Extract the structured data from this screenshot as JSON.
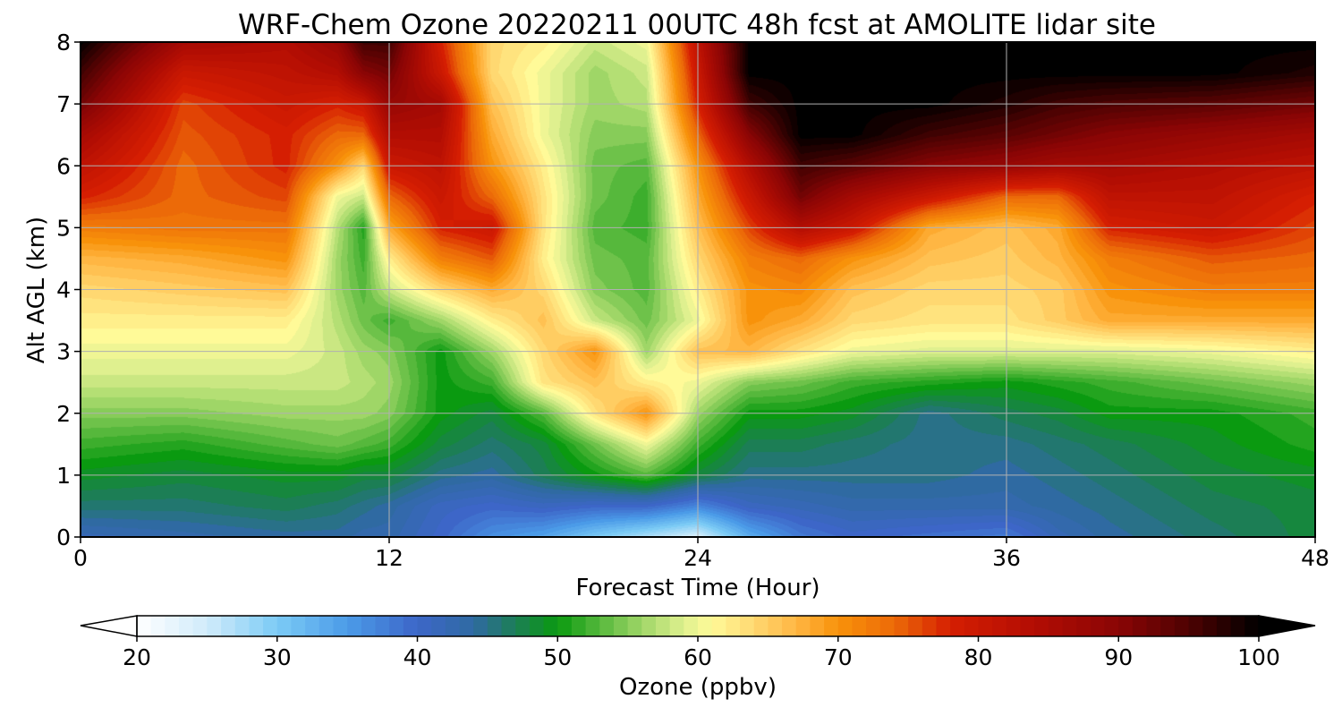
{
  "chart_data": {
    "type": "heatmap",
    "title": "WRF-Chem Ozone  20220211 00UTC 48h fcst at AMOLITE lidar site",
    "xlabel": "Forecast Time (Hour)",
    "ylabel": "Alt AGL (km)",
    "xlim": [
      0,
      48
    ],
    "ylim": [
      0,
      8
    ],
    "xticks": [
      "0",
      "12",
      "24",
      "36",
      "48"
    ],
    "yticks": [
      "0",
      "1",
      "2",
      "3",
      "4",
      "5",
      "6",
      "7",
      "8"
    ],
    "grid": true,
    "x_hours": [
      0,
      4,
      8,
      10,
      11,
      12,
      14,
      16,
      18,
      20,
      22,
      24,
      26,
      28,
      30,
      33,
      36,
      38,
      40,
      44,
      48
    ],
    "y_km": [
      0,
      0.5,
      1,
      1.5,
      2,
      2.5,
      3,
      3.5,
      4,
      4.5,
      5,
      5.5,
      6,
      6.5,
      7,
      7.5,
      8
    ],
    "ozone_ppbv": [
      [
        42,
        43,
        44,
        44,
        43,
        43,
        40,
        36,
        34,
        30,
        27,
        24,
        33,
        38,
        40,
        39,
        38,
        42,
        44,
        46,
        48
      ],
      [
        46,
        46,
        47,
        46,
        45,
        44,
        41,
        40,
        41,
        40,
        40,
        37,
        41,
        42,
        43,
        43,
        43,
        44,
        45,
        47,
        48
      ],
      [
        49,
        48,
        49,
        49,
        48,
        48,
        45,
        44,
        47,
        50,
        53,
        48,
        45,
        45,
        45,
        45,
        44,
        45,
        46,
        48,
        49
      ],
      [
        52,
        51,
        53,
        54,
        53,
        52,
        48,
        46,
        48,
        54,
        60,
        52,
        47,
        47,
        46,
        45,
        45,
        46,
        47,
        49,
        51
      ],
      [
        55,
        55,
        56,
        56,
        56,
        55,
        50,
        48,
        53,
        63,
        70,
        56,
        50,
        50,
        49,
        45,
        47,
        48,
        50,
        50,
        52
      ],
      [
        58,
        58,
        58,
        58,
        57,
        56,
        50,
        52,
        63,
        66,
        62,
        60,
        55,
        54,
        52,
        51,
        50,
        51,
        52,
        54,
        56
      ],
      [
        60,
        60,
        60,
        58,
        56,
        55,
        50,
        56,
        64,
        70,
        56,
        66,
        67,
        63,
        60,
        59,
        59,
        59,
        59,
        60,
        62
      ],
      [
        62,
        62,
        62,
        57,
        54,
        52,
        56,
        62,
        66,
        58,
        54,
        60,
        70,
        68,
        64,
        63,
        63,
        65,
        68,
        68,
        68
      ],
      [
        64,
        65,
        66,
        56,
        53,
        58,
        64,
        68,
        64,
        55,
        53,
        62,
        70,
        71,
        66,
        64,
        64,
        65,
        70,
        72,
        72
      ],
      [
        67,
        68,
        70,
        56,
        52,
        62,
        72,
        75,
        62,
        54,
        53,
        64,
        72,
        74,
        70,
        66,
        65,
        67,
        72,
        75,
        74
      ],
      [
        72,
        73,
        73,
        57,
        51,
        68,
        78,
        80,
        63,
        53,
        52,
        66,
        76,
        84,
        80,
        68,
        66,
        68,
        78,
        80,
        76
      ],
      [
        78,
        74,
        76,
        60,
        58,
        74,
        80,
        74,
        63,
        54,
        52,
        68,
        80,
        92,
        86,
        80,
        74,
        74,
        82,
        82,
        78
      ],
      [
        82,
        74,
        78,
        70,
        64,
        80,
        82,
        70,
        62,
        54,
        53,
        70,
        84,
        96,
        94,
        90,
        88,
        86,
        86,
        84,
        82
      ],
      [
        86,
        75,
        78,
        74,
        74,
        84,
        84,
        68,
        60,
        55,
        55,
        74,
        90,
        100,
        100,
        96,
        94,
        92,
        90,
        88,
        86
      ],
      [
        92,
        76,
        80,
        78,
        80,
        88,
        86,
        66,
        60,
        56,
        57,
        78,
        96,
        100,
        100,
        100,
        98,
        96,
        95,
        94,
        92
      ],
      [
        96,
        80,
        82,
        84,
        90,
        92,
        80,
        64,
        60,
        56,
        58,
        80,
        100,
        100,
        100,
        100,
        100,
        100,
        100,
        100,
        98
      ],
      [
        100,
        86,
        84,
        88,
        96,
        96,
        78,
        64,
        62,
        58,
        60,
        82,
        100,
        100,
        100,
        100,
        100,
        100,
        100,
        100,
        100
      ]
    ],
    "colorbar": {
      "label": "Ozone  (ppbv)",
      "min": 20,
      "max": 100,
      "ticks": [
        "20",
        "30",
        "40",
        "50",
        "60",
        "70",
        "80",
        "90",
        "100"
      ],
      "extend": "both",
      "stops": [
        {
          "v": 20,
          "c": "#ffffff"
        },
        {
          "v": 25,
          "c": "#d0ebfa"
        },
        {
          "v": 30,
          "c": "#7ccbf5"
        },
        {
          "v": 35,
          "c": "#4b9be8"
        },
        {
          "v": 40,
          "c": "#3d66c8"
        },
        {
          "v": 44,
          "c": "#2f6aa2"
        },
        {
          "v": 47,
          "c": "#1c7e55"
        },
        {
          "v": 50,
          "c": "#0a9a10"
        },
        {
          "v": 53,
          "c": "#56b83c"
        },
        {
          "v": 56,
          "c": "#9fd667"
        },
        {
          "v": 59,
          "c": "#dff08f"
        },
        {
          "v": 61,
          "c": "#fffa98"
        },
        {
          "v": 64,
          "c": "#ffd871"
        },
        {
          "v": 67,
          "c": "#ffb643"
        },
        {
          "v": 70,
          "c": "#f8920a"
        },
        {
          "v": 74,
          "c": "#ec6a08"
        },
        {
          "v": 78,
          "c": "#d51e02"
        },
        {
          "v": 84,
          "c": "#b20d03"
        },
        {
          "v": 90,
          "c": "#8a0505"
        },
        {
          "v": 95,
          "c": "#4e0202"
        },
        {
          "v": 100,
          "c": "#000000"
        }
      ]
    }
  }
}
